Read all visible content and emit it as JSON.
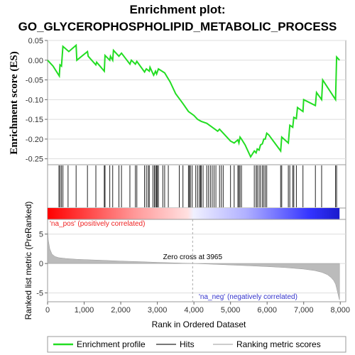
{
  "chart_data": {
    "type": "line",
    "title_line1": "Enrichment plot:",
    "title_line2": "GO_GLYCEROPHOSPHOLIPID_METABOLIC_PROCESS",
    "es_panel": {
      "ylabel": "Enrichment score (ES)",
      "ylim": [
        -0.265,
        0.05
      ],
      "yticks": [
        0.05,
        0.0,
        -0.05,
        -0.1,
        -0.15,
        -0.2,
        -0.25
      ],
      "ytick_labels": [
        "0.05",
        "0.00",
        "-0.05",
        "-0.10",
        "-0.15",
        "-0.20",
        "-0.25"
      ],
      "color": "#22dd22",
      "series": {
        "name": "Enrichment profile",
        "x": [
          0,
          150,
          320,
          340,
          380,
          420,
          580,
          780,
          800,
          1090,
          1110,
          1320,
          1340,
          1550,
          1570,
          1700,
          1720,
          1780,
          1800,
          1950,
          2020,
          2250,
          2290,
          2400,
          2440,
          2650,
          2700,
          2780,
          2800,
          2900,
          2950,
          2980,
          3030,
          3200,
          3350,
          3500,
          3700,
          3850,
          4000,
          4100,
          4200,
          4350,
          4500,
          4650,
          4700,
          4800,
          5000,
          5100,
          5200,
          5230,
          5260,
          5300,
          5400,
          5550,
          5650,
          5700,
          5730,
          5780,
          5820,
          5870,
          5910,
          5950,
          5990,
          6050,
          6370,
          6400,
          6580,
          6620,
          6700,
          6730,
          6800,
          6830,
          6980,
          7000,
          7320,
          7350,
          7490,
          7520,
          7870,
          7900,
          7980
        ],
        "y": [
          0.0,
          -0.015,
          -0.04,
          -0.012,
          -0.015,
          0.035,
          0.022,
          0.038,
          0.0,
          0.022,
          0.01,
          -0.012,
          -0.005,
          -0.028,
          0.012,
          0.0,
          0.01,
          0.0,
          0.025,
          0.01,
          0.018,
          -0.01,
          0.0,
          -0.01,
          -0.003,
          -0.03,
          -0.022,
          -0.028,
          -0.018,
          -0.038,
          -0.028,
          -0.035,
          -0.022,
          -0.032,
          -0.055,
          -0.085,
          -0.11,
          -0.13,
          -0.14,
          -0.15,
          -0.155,
          -0.16,
          -0.17,
          -0.18,
          -0.175,
          -0.185,
          -0.205,
          -0.21,
          -0.202,
          -0.21,
          -0.195,
          -0.2,
          -0.215,
          -0.245,
          -0.23,
          -0.235,
          -0.225,
          -0.228,
          -0.215,
          -0.212,
          -0.2,
          -0.2,
          -0.185,
          -0.19,
          -0.23,
          -0.195,
          -0.21,
          -0.165,
          -0.17,
          -0.145,
          -0.148,
          -0.12,
          -0.13,
          -0.1,
          -0.115,
          -0.082,
          -0.1,
          -0.05,
          -0.1,
          0.008,
          0.0
        ]
      }
    },
    "hits": {
      "name": "Hits",
      "x": [
        310,
        340,
        380,
        420,
        560,
        780,
        1090,
        1320,
        1550,
        1570,
        1700,
        1780,
        1950,
        2020,
        2250,
        2400,
        2440,
        2650,
        2700,
        2750,
        2780,
        2880,
        2920,
        2950,
        2980,
        3000,
        3030,
        3150,
        3200,
        3300,
        3600,
        3700,
        3850,
        3880,
        3900,
        3950,
        4050,
        4100,
        4150,
        4180,
        4200,
        4250,
        4350,
        4400,
        4450,
        4500,
        4550,
        4600,
        4700,
        4750,
        4800,
        5000,
        5100,
        5200,
        5230,
        5260,
        5300,
        5650,
        5700,
        5730,
        5780,
        5820,
        5870,
        5910,
        5950,
        5990,
        6370,
        6400,
        6580,
        6620,
        6700,
        6730,
        6800,
        6980,
        7320,
        7490,
        7870,
        7900
      ]
    },
    "ranked_panel": {
      "ylabel": "Ranked list metric (PreRanked)",
      "ylim": [
        -6.5,
        7.5
      ],
      "yticks": [
        5,
        0,
        -5
      ],
      "ytick_labels": [
        "5",
        "0",
        "-5"
      ],
      "curve": {
        "name": "Ranking metric scores",
        "x": [
          0,
          20,
          60,
          120,
          200,
          300,
          500,
          800,
          1200,
          1600,
          2000,
          2500,
          3000,
          3500,
          3965,
          4500,
          5000,
          5500,
          6000,
          6500,
          7000,
          7300,
          7500,
          7650,
          7750,
          7820,
          7870,
          7900,
          7930,
          7960,
          7980
        ],
        "y": [
          6.0,
          4.0,
          2.5,
          1.6,
          1.2,
          1.0,
          0.85,
          0.72,
          0.62,
          0.52,
          0.42,
          0.32,
          0.2,
          0.1,
          0.0,
          -0.12,
          -0.25,
          -0.38,
          -0.52,
          -0.7,
          -0.95,
          -1.2,
          -1.5,
          -1.9,
          -2.4,
          -2.9,
          -3.5,
          -4.2,
          -5.0,
          -5.8,
          -6.2
        ]
      },
      "zero_cross_label": "Zero cross at 3965",
      "zero_cross_x": 3965,
      "pos_label": "'na_pos' (positively correlated)",
      "neg_label": "'na_neg' (negatively correlated)"
    },
    "xaxis": {
      "label": "Rank in Ordered Dataset",
      "xlim": [
        0,
        8150
      ],
      "xticks": [
        0,
        1000,
        2000,
        3000,
        4000,
        5000,
        6000,
        7000,
        8000
      ],
      "xtick_labels": [
        "0",
        "1,000",
        "2,000",
        "3,000",
        "4,000",
        "5,000",
        "6,000",
        "7,000",
        "8,000"
      ],
      "data_end": 7980
    },
    "legend": {
      "placement": "bottom",
      "items": [
        {
          "label": "Enrichment profile",
          "color": "#22dd22"
        },
        {
          "label": "Hits",
          "color": "#777777"
        },
        {
          "label": "Ranking metric scores",
          "color": "#cccccc"
        }
      ]
    }
  }
}
